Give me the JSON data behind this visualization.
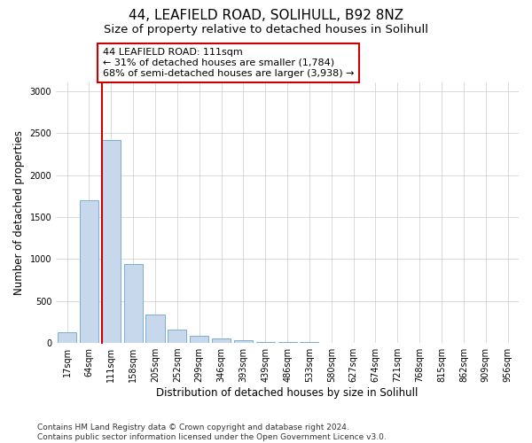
{
  "title1": "44, LEAFIELD ROAD, SOLIHULL, B92 8NZ",
  "title2": "Size of property relative to detached houses in Solihull",
  "xlabel": "Distribution of detached houses by size in Solihull",
  "ylabel": "Number of detached properties",
  "categories": [
    "17sqm",
    "64sqm",
    "111sqm",
    "158sqm",
    "205sqm",
    "252sqm",
    "299sqm",
    "346sqm",
    "393sqm",
    "439sqm",
    "486sqm",
    "533sqm",
    "580sqm",
    "627sqm",
    "674sqm",
    "721sqm",
    "768sqm",
    "815sqm",
    "862sqm",
    "909sqm",
    "956sqm"
  ],
  "values": [
    125,
    1700,
    2420,
    940,
    340,
    155,
    90,
    55,
    30,
    15,
    10,
    8,
    5,
    5,
    3,
    3,
    2,
    2,
    1,
    1,
    1
  ],
  "bar_color": "#c8d8ec",
  "bar_edge_color": "#7aaed0",
  "highlight_bar_index": 2,
  "highlight_line_color": "#cc0000",
  "annotation_text": "44 LEAFIELD ROAD: 111sqm\n← 31% of detached houses are smaller (1,784)\n68% of semi-detached houses are larger (3,938) →",
  "annotation_box_color": "#ffffff",
  "annotation_box_edge_color": "#cc0000",
  "ylim": [
    0,
    3100
  ],
  "yticks": [
    0,
    500,
    1000,
    1500,
    2000,
    2500,
    3000
  ],
  "footnote": "Contains HM Land Registry data © Crown copyright and database right 2024.\nContains public sector information licensed under the Open Government Licence v3.0.",
  "bg_color": "#ffffff",
  "grid_color": "#cccccc",
  "title1_fontsize": 11,
  "title2_fontsize": 9.5,
  "annotation_fontsize": 8,
  "axis_label_fontsize": 8.5,
  "tick_fontsize": 7,
  "footnote_fontsize": 6.5
}
